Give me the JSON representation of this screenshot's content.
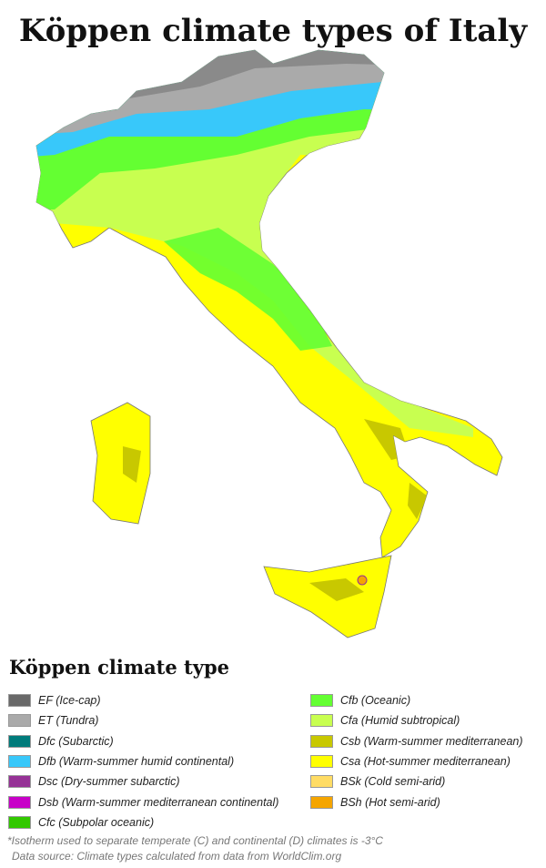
{
  "title": "Köppen climate types of Italy",
  "legend": {
    "title": "Köppen climate type",
    "left": [
      {
        "label": "EF (Ice-cap)",
        "color": "#696969"
      },
      {
        "label": "ET (Tundra)",
        "color": "#aaaaaa"
      },
      {
        "label": "Dfc (Subarctic)",
        "color": "#007b7b"
      },
      {
        "label": "Dfb (Warm-summer humid continental)",
        "color": "#38c8fa"
      },
      {
        "label": "Dsc (Dry-summer subarctic)",
        "color": "#963296"
      },
      {
        "label": "Dsb (Warm-summer mediterranean continental)",
        "color": "#c800c8"
      },
      {
        "label": "Cfc (Subpolar oceanic)",
        "color": "#32c800"
      }
    ],
    "right": [
      {
        "label": "Cfb (Oceanic)",
        "color": "#64ff32"
      },
      {
        "label": "Cfa (Humid subtropical)",
        "color": "#c8ff50"
      },
      {
        "label": "Csb (Warm-summer mediterranean)",
        "color": "#c8c800"
      },
      {
        "label": "Csa (Hot-summer mediterranean)",
        "color": "#ffff00"
      },
      {
        "label": "BSk (Cold semi-arid)",
        "color": "#ffdc64"
      },
      {
        "label": "BSh (Hot semi-arid)",
        "color": "#f5a500"
      }
    ]
  },
  "footnote": "*Isotherm used to separate temperate (C) and continental (D) climates is -3°C",
  "source": "Data source: Climate types calculated from data from WorldClim.org"
}
